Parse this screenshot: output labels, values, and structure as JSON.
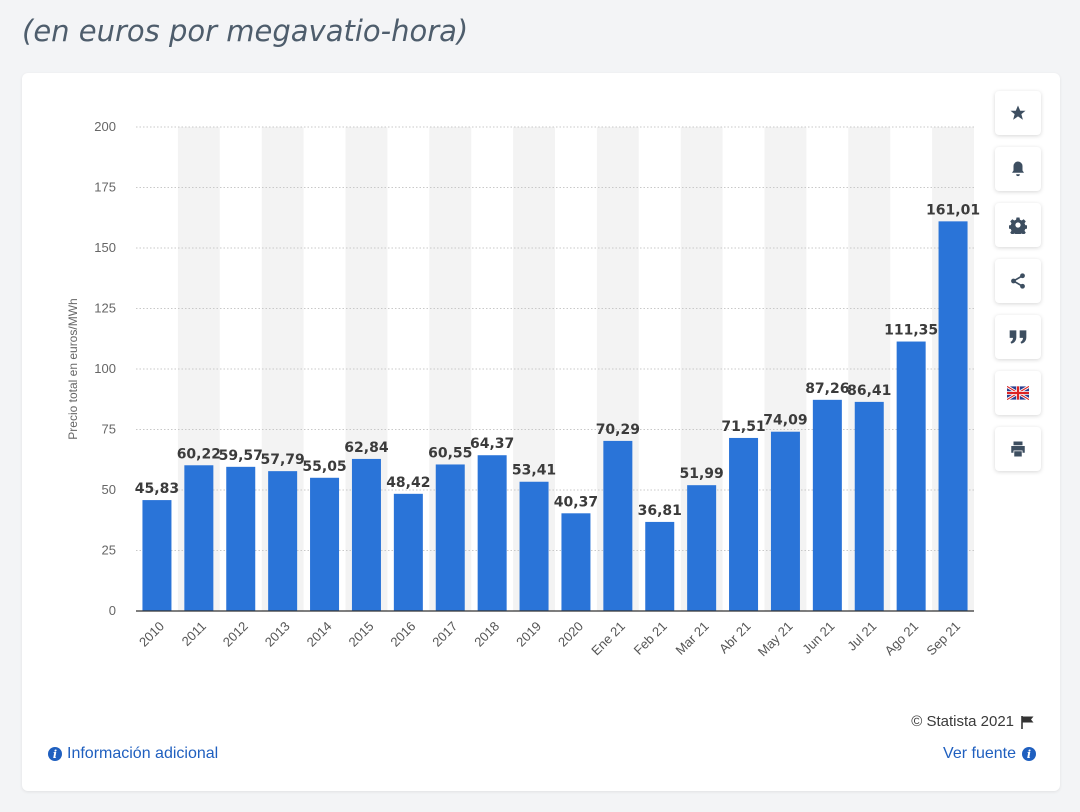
{
  "subtitle": "(en euros por megavatio-hora)",
  "colors": {
    "bar": "#2a74d8",
    "band": "#f3f3f3",
    "grid": "#c8c8c8",
    "axis": "#333333"
  },
  "toolbar": [
    {
      "name": "favorite-button",
      "icon": "star-icon"
    },
    {
      "name": "alert-button",
      "icon": "bell-icon"
    },
    {
      "name": "settings-button",
      "icon": "gear-icon"
    },
    {
      "name": "share-button",
      "icon": "share-icon"
    },
    {
      "name": "cite-button",
      "icon": "quote-icon"
    },
    {
      "name": "language-button",
      "icon": "uk-flag-icon"
    },
    {
      "name": "print-button",
      "icon": "print-icon"
    }
  ],
  "footer": {
    "copyright": "© Statista 2021",
    "info_link": "Información adicional",
    "source_link": "Ver fuente"
  },
  "chart_data": {
    "type": "bar",
    "title": "",
    "xlabel": "",
    "ylabel": "Precio total en euros/MWh",
    "ylim": [
      0,
      200
    ],
    "yticks": [
      0,
      25,
      50,
      75,
      100,
      125,
      150,
      175,
      200
    ],
    "grid": true,
    "categories": [
      "2010",
      "2011",
      "2012",
      "2013",
      "2014",
      "2015",
      "2016",
      "2017",
      "2018",
      "2019",
      "2020",
      "Ene 21",
      "Feb 21",
      "Mar 21",
      "Abr 21",
      "May 21",
      "Jun 21",
      "Jul 21",
      "Ago 21",
      "Sep 21"
    ],
    "values": [
      45.83,
      60.22,
      59.57,
      57.79,
      55.05,
      62.84,
      48.42,
      60.55,
      64.37,
      53.41,
      40.37,
      70.29,
      36.81,
      51.99,
      71.51,
      74.09,
      87.26,
      86.41,
      111.35,
      161.01
    ],
    "value_labels": [
      "45,83",
      "60,22",
      "59,57",
      "57,79",
      "55,05",
      "62,84",
      "48,42",
      "60,55",
      "64,37",
      "53,41",
      "40,37",
      "70,29",
      "36,81",
      "51,99",
      "71,51",
      "74,09",
      "87,26",
      "86,41",
      "111,35",
      "161,01"
    ]
  }
}
